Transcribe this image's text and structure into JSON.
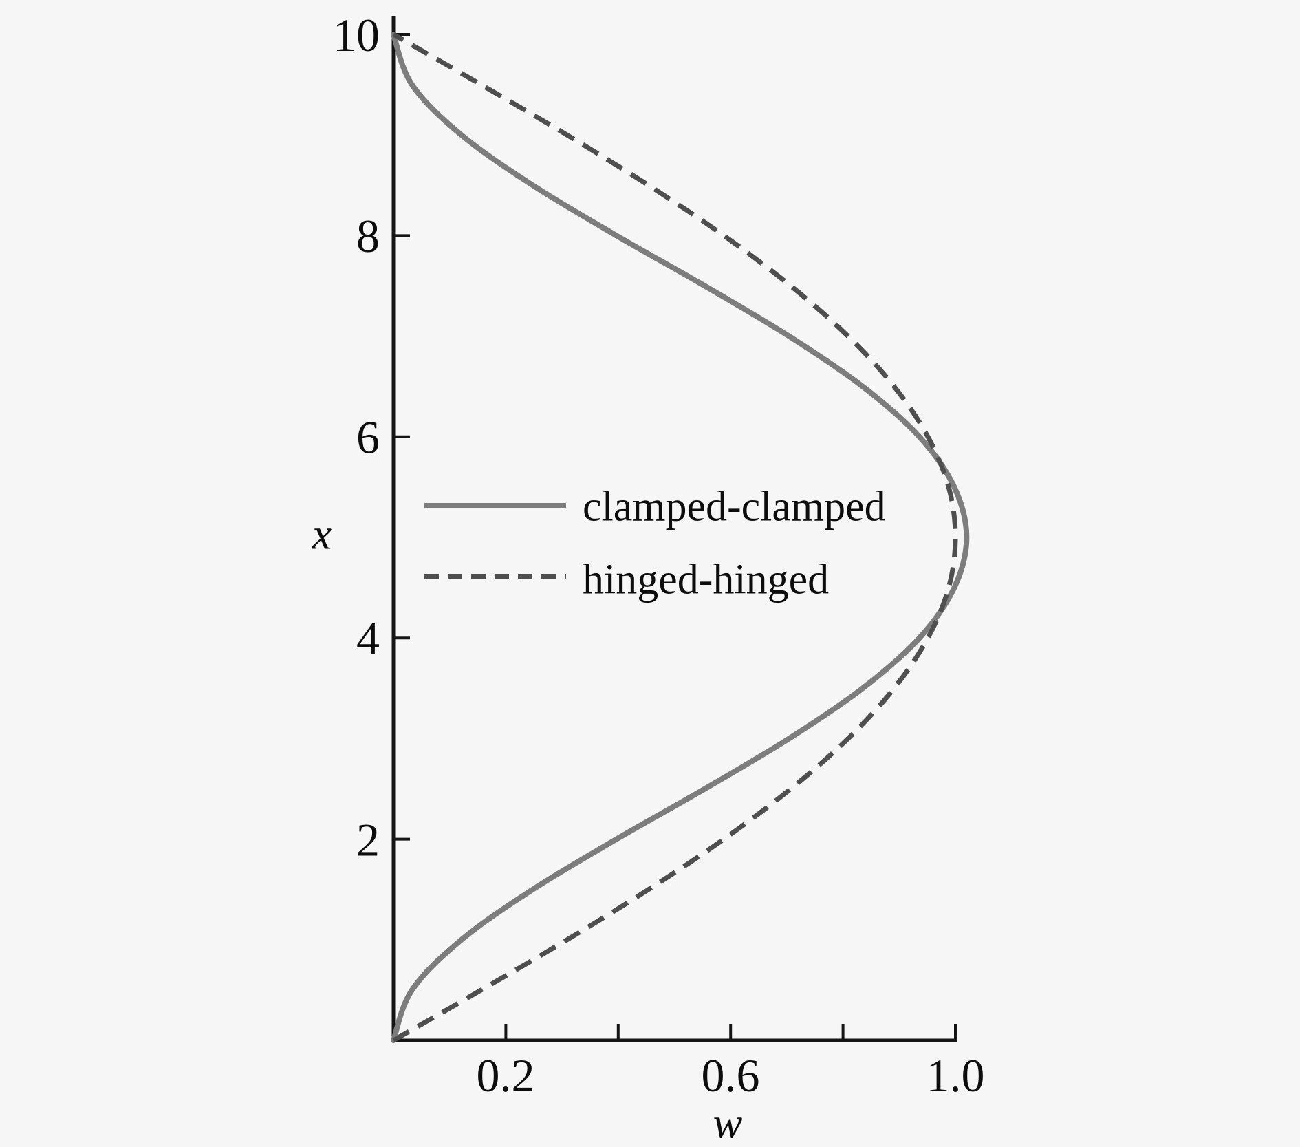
{
  "figure": {
    "background_color": "#f6f6f6",
    "axis_color": "#151515",
    "text_color": "#0d0d0d"
  },
  "chart_data": {
    "type": "line",
    "title": "",
    "orientation": "deflection w on horizontal axis, beam coordinate x on vertical axis",
    "xlabel": "w",
    "ylabel": "x",
    "grid": false,
    "axes": {
      "horizontal": {
        "label": "w",
        "min": 0,
        "max": 1.0,
        "ticks": [
          0.2,
          0.4,
          0.6,
          0.8,
          1.0
        ],
        "labeled_tick_values": [
          0.2,
          0.6,
          1.0
        ],
        "tick_labels": [
          "0.2",
          "0.6",
          "1.0"
        ]
      },
      "vertical": {
        "label": "x",
        "min": 0,
        "max": 10,
        "ticks": [
          2,
          4,
          6,
          8,
          10
        ],
        "tick_labels": [
          "2",
          "4",
          "6",
          "8",
          "10"
        ]
      }
    },
    "legend": {
      "position": "inside-left-middle",
      "entries": [
        "clamped-clamped",
        "hinged-hinged"
      ]
    },
    "series": [
      {
        "name": "clamped-clamped",
        "line_style": "solid",
        "color": "#7d7d7d",
        "x": [
          0,
          0.5,
          1,
          1.5,
          2,
          2.5,
          3,
          3.5,
          4,
          4.5,
          5,
          5.5,
          6,
          6.5,
          7,
          7.5,
          8,
          8.5,
          9,
          9.5,
          10
        ],
        "w": [
          0,
          0.033,
          0.121,
          0.248,
          0.397,
          0.554,
          0.704,
          0.835,
          0.936,
          0.998,
          1.02,
          0.998,
          0.936,
          0.835,
          0.704,
          0.554,
          0.397,
          0.248,
          0.121,
          0.033,
          0
        ]
      },
      {
        "name": "hinged-hinged",
        "line_style": "dashed",
        "color": "#4f4f4f",
        "x": [
          0,
          0.5,
          1,
          1.5,
          2,
          2.5,
          3,
          3.5,
          4,
          4.5,
          5,
          5.5,
          6,
          6.5,
          7,
          7.5,
          8,
          8.5,
          9,
          9.5,
          10
        ],
        "w": [
          0,
          0.156,
          0.309,
          0.454,
          0.588,
          0.707,
          0.809,
          0.891,
          0.951,
          0.988,
          1.0,
          0.988,
          0.951,
          0.891,
          0.809,
          0.707,
          0.588,
          0.454,
          0.309,
          0.156,
          0
        ]
      }
    ]
  }
}
